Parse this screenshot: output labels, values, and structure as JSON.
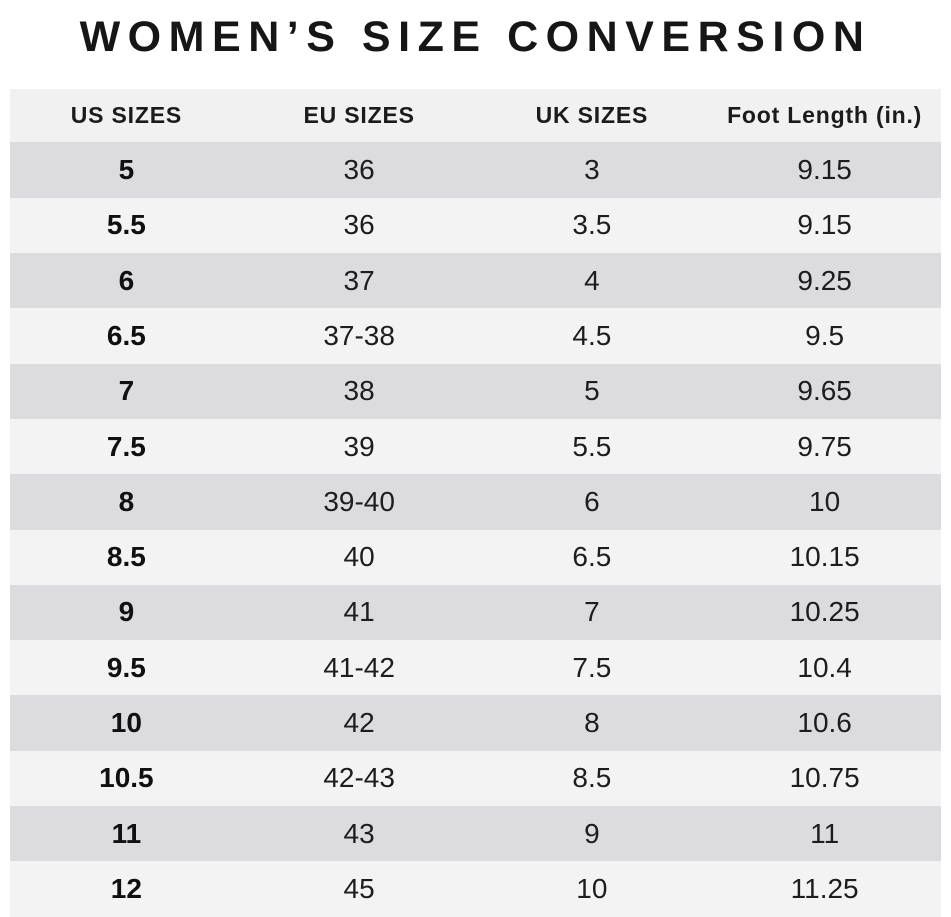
{
  "title": "WOMEN’S SIZE CONVERSION",
  "colors": {
    "page_bg": "#ffffff",
    "header_bg": "#f1f1f2",
    "row_dark": "#dcdcde",
    "row_light": "#f3f3f4",
    "text": "#1d1d1f"
  },
  "chart_data": {
    "type": "table",
    "title": "WOMEN’S SIZE CONVERSION",
    "columns": [
      "US SIZES",
      "EU SIZES",
      "UK SIZES",
      "Foot Length (in.)"
    ],
    "rows": [
      [
        "5",
        "36",
        "3",
        "9.15"
      ],
      [
        "5.5",
        "36",
        "3.5",
        "9.15"
      ],
      [
        "6",
        "37",
        "4",
        "9.25"
      ],
      [
        "6.5",
        "37-38",
        "4.5",
        "9.5"
      ],
      [
        "7",
        "38",
        "5",
        "9.65"
      ],
      [
        "7.5",
        "39",
        "5.5",
        "9.75"
      ],
      [
        "8",
        "39-40",
        "6",
        "10"
      ],
      [
        "8.5",
        "40",
        "6.5",
        "10.15"
      ],
      [
        "9",
        "41",
        "7",
        "10.25"
      ],
      [
        "9.5",
        "41-42",
        "7.5",
        "10.4"
      ],
      [
        "10",
        "42",
        "8",
        "10.6"
      ],
      [
        "10.5",
        "42-43",
        "8.5",
        "10.75"
      ],
      [
        "11",
        "43",
        "9",
        "11"
      ],
      [
        "12",
        "45",
        "10",
        "11.25"
      ]
    ],
    "layout": {
      "row_striping": "first data row dark, alternating",
      "alignment": "center"
    }
  }
}
